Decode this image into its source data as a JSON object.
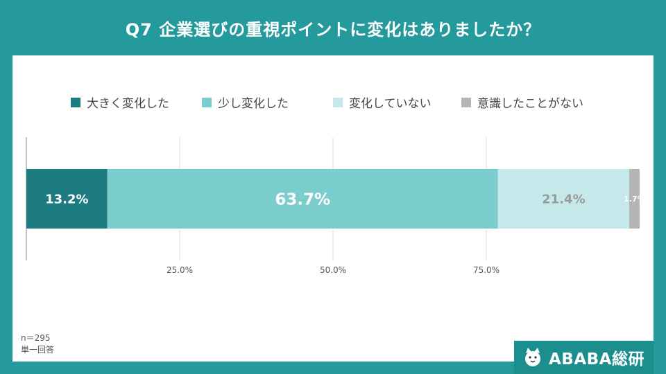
{
  "title": "Q7  企業選びの重視ポイントに変化はありましたか？",
  "sample_size": "n＝295",
  "answer_type": "単一回答",
  "brand": {
    "name": "ABABA総研",
    "icon": "cat-mascot-icon"
  },
  "colors": {
    "background": "#259a9c",
    "card": "#ffffff"
  },
  "chart_data": {
    "type": "bar",
    "orientation": "horizontal",
    "stacked": true,
    "percent": true,
    "xlim": [
      0,
      100
    ],
    "xticks": [
      25,
      50,
      75
    ],
    "xtick_labels": [
      "25.0%",
      "50.0%",
      "75.0%"
    ],
    "grid": true,
    "legend_position": "top",
    "series": [
      {
        "name": "大きく変化した",
        "value": 13.2,
        "label": "13.2%",
        "color": "#1c7c80",
        "label_color": "#ffffff"
      },
      {
        "name": "少し変化した",
        "value": 63.7,
        "label": "63.7%",
        "color": "#7ccdce",
        "label_color": "#ffffff"
      },
      {
        "name": "変化していない",
        "value": 21.4,
        "label": "21.4%",
        "color": "#c5e8ea",
        "label_color": "#9a9a9a"
      },
      {
        "name": "意識したことがない",
        "value": 1.7,
        "label": "1.7%",
        "color": "#b5b5b8",
        "label_color": "#ffffff"
      }
    ]
  }
}
